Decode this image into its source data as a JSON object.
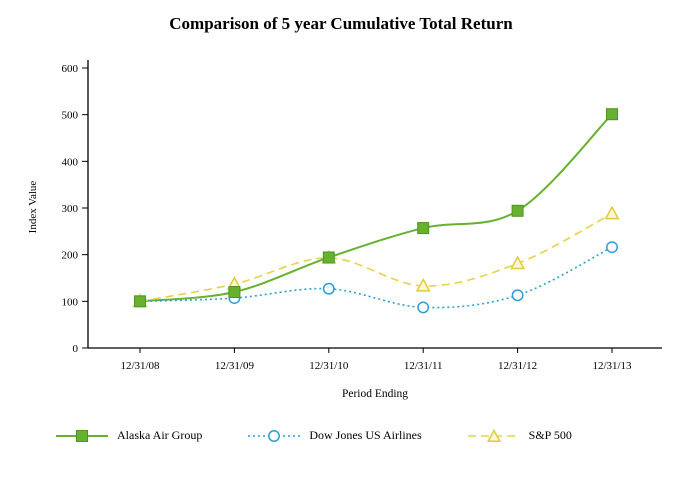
{
  "title": "Comparison of 5 year Cumulative Total Return",
  "chart_data": {
    "type": "line",
    "title": "Comparison of 5 year Cumulative Total Return",
    "xlabel": "Period Ending",
    "ylabel": "Index Value",
    "categories": [
      "12/31/08",
      "12/31/09",
      "12/31/10",
      "12/31/11",
      "12/31/12",
      "12/31/13"
    ],
    "series": [
      {
        "name": "Alaska Air Group",
        "values": [
          100,
          120,
          194,
          257,
          294,
          501
        ],
        "color": "#66b22e",
        "marker": "square",
        "marker_fill": "#66b22e",
        "marker_stroke": "#4f9420",
        "line": "solid"
      },
      {
        "name": "Dow Jones US Airlines",
        "values": [
          100,
          107,
          127,
          87,
          113,
          216
        ],
        "color": "#2d9fd8",
        "marker": "circle",
        "marker_fill": "#ffffff",
        "marker_stroke": "#2d9fd8",
        "line": "dotted"
      },
      {
        "name": "S&P 500",
        "values": [
          100,
          137,
          193,
          133,
          181,
          288
        ],
        "color": "#e8d24b",
        "marker": "triangle",
        "marker_fill": "#fcf6d4",
        "marker_stroke": "#e3c93e",
        "line": "dashed"
      }
    ],
    "ylim": [
      0,
      600
    ],
    "yticks": [
      0,
      100,
      200,
      300,
      400,
      500,
      600
    ],
    "grid": false,
    "legend_position": "bottom",
    "axis_color": "#000000",
    "background_color": "#ffffff"
  }
}
